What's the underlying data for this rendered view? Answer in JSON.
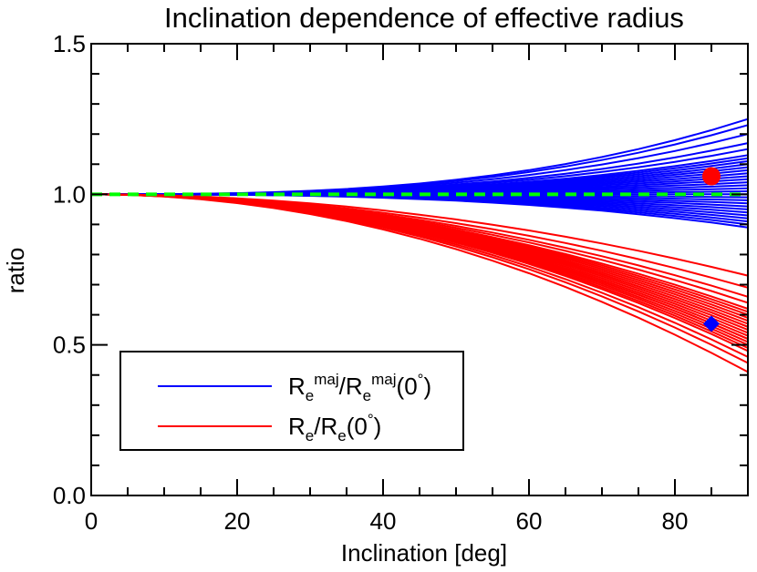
{
  "chart_data": {
    "type": "line",
    "title": "Inclination dependence of effective radius",
    "xlabel": "Inclination [deg]",
    "ylabel": "ratio",
    "xlim": [
      0,
      90
    ],
    "ylim": [
      0.0,
      1.5
    ],
    "xticks": [
      0,
      20,
      40,
      60,
      80
    ],
    "xtick_labels": [
      "0",
      "20",
      "40",
      "60",
      "80"
    ],
    "yticks": [
      0.0,
      0.5,
      1.0,
      1.5
    ],
    "ytick_labels": [
      "0.0",
      "0.5",
      "1.0",
      "1.5"
    ],
    "grid": false,
    "legend_position": "lower-left",
    "legend": [
      {
        "label_parts": [
          {
            "t": "R",
            "d": "base"
          },
          {
            "t": "e",
            "d": "sub"
          },
          {
            "t": "maj",
            "d": "sup"
          },
          {
            "t": "/R",
            "d": "base"
          },
          {
            "t": "e",
            "d": "sub"
          },
          {
            "t": "maj",
            "d": "sup"
          },
          {
            "t": "(0",
            "d": "base"
          },
          {
            "t": "°",
            "d": "sup"
          },
          {
            "t": ")",
            "d": "base"
          }
        ],
        "color": "#0000ff"
      },
      {
        "label_parts": [
          {
            "t": "R",
            "d": "base"
          },
          {
            "t": "e",
            "d": "sub"
          },
          {
            "t": "/R",
            "d": "base"
          },
          {
            "t": "e",
            "d": "sub"
          },
          {
            "t": "(0",
            "d": "base"
          },
          {
            "t": "°",
            "d": "sup"
          },
          {
            "t": ")",
            "d": "base"
          }
        ],
        "color": "#ff0000"
      }
    ],
    "x": [
      0,
      5,
      10,
      15,
      20,
      25,
      30,
      35,
      40,
      45,
      50,
      55,
      60,
      65,
      70,
      75,
      80,
      85,
      90
    ],
    "series_groups": [
      {
        "color": "#0000ff",
        "final_values": [
          1.25,
          1.23,
          1.2,
          1.17,
          1.15,
          1.13,
          1.12,
          1.11,
          1.1,
          1.09,
          1.08,
          1.07,
          1.06,
          1.05,
          1.04,
          1.03,
          1.02,
          1.01,
          1.0,
          0.99,
          0.98,
          0.97,
          0.96,
          0.95,
          0.94,
          0.93,
          0.92,
          0.91,
          0.9,
          0.89
        ],
        "shape_exponent": 2.8
      },
      {
        "color": "#ff0000",
        "final_values": [
          0.73,
          0.69,
          0.66,
          0.64,
          0.62,
          0.61,
          0.6,
          0.59,
          0.58,
          0.57,
          0.56,
          0.56,
          0.55,
          0.54,
          0.53,
          0.52,
          0.52,
          0.51,
          0.5,
          0.49,
          0.48,
          0.46,
          0.44,
          0.41
        ],
        "shape_exponent": 2.0
      }
    ],
    "reference_line": {
      "y": 1.0,
      "style": "dashed",
      "color": "#00ff00"
    },
    "markers": [
      {
        "shape": "circle",
        "x": 85,
        "y": 1.06,
        "color": "#ff0000"
      },
      {
        "shape": "diamond",
        "x": 85,
        "y": 0.57,
        "color": "#0000ff"
      }
    ]
  }
}
